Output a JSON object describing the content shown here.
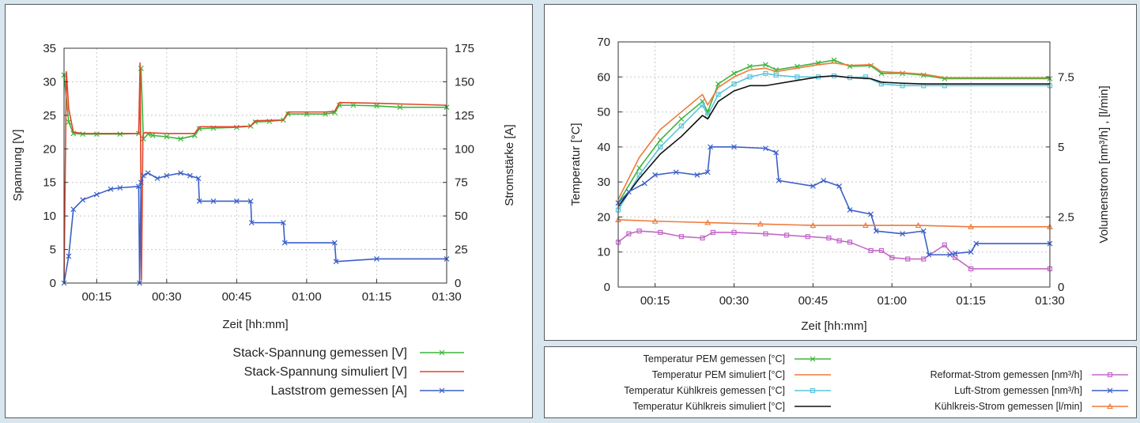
{
  "colors": {
    "green": "#3ab53a",
    "red": "#e2452a",
    "blue": "#3a5fc8",
    "cyan": "#5ac6dc",
    "black": "#111111",
    "orange": "#f07a3a",
    "magenta": "#c268c8"
  },
  "chart_data": [
    {
      "type": "line",
      "xlabel": "Zeit [hh:mm]",
      "ylabel": "Spannung [V]",
      "y2label": "Stromstärke [A]",
      "x_ticks": [
        "00:15",
        "00:30",
        "00:45",
        "01:00",
        "01:15",
        "01:30"
      ],
      "xlim_min": [
        8,
        90
      ],
      "ylim": [
        0,
        35
      ],
      "y_ticks": [
        0,
        5,
        10,
        15,
        20,
        25,
        30,
        35
      ],
      "y2lim": [
        0,
        175
      ],
      "y2_ticks": [
        0,
        25,
        50,
        75,
        100,
        125,
        150,
        175
      ],
      "grid": true,
      "legend_position": "bottom-right",
      "series": [
        {
          "name": "Stack-Spannung gemessen [V]",
          "color": "green",
          "marker": "x",
          "axis": "y",
          "x": [
            8,
            9,
            10,
            12,
            15,
            20,
            24,
            24.5,
            25,
            26,
            27,
            30,
            33,
            36,
            37,
            40,
            45,
            48,
            49,
            52,
            55,
            56,
            60,
            64,
            66,
            67,
            70,
            75,
            80,
            90
          ],
          "y": [
            31,
            24,
            22.3,
            22.2,
            22.2,
            22.2,
            22.3,
            32,
            21.5,
            22.2,
            22,
            21.8,
            21.5,
            22,
            23,
            23.1,
            23.2,
            23.4,
            24,
            24.1,
            24.3,
            25.2,
            25.2,
            25.2,
            25.4,
            26.5,
            26.5,
            26.4,
            26.2,
            26.2
          ]
        },
        {
          "name": "Stack-Spannung simuliert [V]",
          "color": "red",
          "marker": "",
          "axis": "y",
          "x": [
            8,
            8.5,
            9,
            10,
            12,
            15,
            20,
            24,
            24.3,
            24.6,
            24.9,
            25.2,
            26,
            30,
            36,
            37,
            40,
            45,
            48,
            49,
            55,
            56,
            64,
            66,
            67,
            75,
            90
          ],
          "y": [
            0,
            31.5,
            26,
            22.5,
            22.3,
            22.3,
            22.3,
            22.3,
            32.8,
            0.5,
            22,
            22.4,
            22.4,
            22.3,
            22.3,
            23.3,
            23.3,
            23.3,
            23.4,
            24.2,
            24.3,
            25.5,
            25.5,
            25.6,
            26.9,
            26.8,
            26.5
          ]
        },
        {
          "name": "Laststrom gemessen [A]",
          "color": "blue",
          "marker": "x",
          "axis": "y2",
          "x": [
            8,
            9,
            10,
            12,
            15,
            18,
            20,
            24,
            24.2,
            24.5,
            25,
            26,
            28,
            30,
            33,
            35,
            36.8,
            37,
            40,
            45,
            48,
            48.2,
            55,
            55.3,
            66,
            66.3,
            75,
            90
          ],
          "y": [
            0,
            20,
            55,
            62,
            66,
            70,
            71,
            72,
            0,
            75,
            80,
            82,
            78,
            80,
            82,
            80,
            78,
            61,
            61,
            61,
            61,
            45,
            45,
            30,
            30,
            16,
            18,
            18
          ]
        }
      ]
    },
    {
      "type": "line",
      "xlabel": "Zeit [hh:mm]",
      "ylabel": "Temperatur [°C]",
      "y2label": "Volumenstrom [nm³/h] , [l/min]",
      "x_ticks": [
        "00:15",
        "00:30",
        "00:45",
        "01:00",
        "01:15",
        "01:30"
      ],
      "xlim_min": [
        8,
        90
      ],
      "ylim": [
        0,
        70
      ],
      "y_ticks": [
        0,
        10,
        20,
        30,
        40,
        50,
        60,
        70
      ],
      "y2lim": [
        0,
        8.75
      ],
      "y2_ticks": [
        0,
        2.5,
        5,
        7.5
      ],
      "grid": true,
      "legend_position": "below",
      "series": [
        {
          "name": "Temperatur PEM gemessen [°C]",
          "color": "green",
          "marker": "x",
          "axis": "y",
          "x": [
            8,
            12,
            16,
            20,
            24,
            25,
            27,
            30,
            33,
            36,
            38,
            42,
            46,
            49,
            52,
            56,
            58,
            62,
            66,
            70,
            90
          ],
          "y": [
            24,
            34,
            42,
            48,
            53,
            50,
            58,
            61,
            63,
            63.5,
            62,
            63,
            64,
            64.8,
            63,
            63.2,
            61,
            61,
            60.5,
            59.5,
            59.5
          ]
        },
        {
          "name": "Temperatur PEM simuliert [°C]",
          "color": "orange",
          "marker": "",
          "axis": "y",
          "x": [
            8,
            12,
            16,
            20,
            24,
            25,
            27,
            30,
            33,
            36,
            38,
            42,
            46,
            49,
            52,
            56,
            58,
            62,
            66,
            70,
            90
          ],
          "y": [
            25,
            37,
            45,
            50,
            55,
            52,
            57,
            60,
            62,
            62.5,
            61.5,
            62.5,
            63.5,
            64,
            63.3,
            63.5,
            61.5,
            61.2,
            60.8,
            59.8,
            59.8
          ]
        },
        {
          "name": "Temperatur Kühlkreis gemessen [°C]",
          "color": "cyan",
          "marker": "square",
          "axis": "y",
          "x": [
            8,
            12,
            16,
            20,
            24,
            25,
            27,
            30,
            33,
            36,
            38,
            42,
            46,
            49,
            52,
            55,
            58,
            62,
            66,
            70,
            90
          ],
          "y": [
            22,
            32,
            40,
            46,
            52,
            49,
            55,
            58,
            60,
            61,
            60.5,
            60,
            60,
            60.3,
            59.8,
            60,
            58,
            57.5,
            57.5,
            57.5,
            57.5
          ]
        },
        {
          "name": "Temperatur Kühlkreis simuliert [°C]",
          "color": "black",
          "marker": "",
          "axis": "y",
          "x": [
            8,
            12,
            16,
            20,
            24,
            25,
            27,
            30,
            33,
            36,
            38,
            42,
            46,
            49,
            52,
            56,
            58,
            62,
            66,
            70,
            90
          ],
          "y": [
            23,
            31,
            38,
            43,
            49,
            48,
            53,
            56,
            57.5,
            57.5,
            58,
            59,
            60,
            60.3,
            59.8,
            59.5,
            58.5,
            58.2,
            58,
            58,
            58
          ]
        },
        {
          "name": "Reformat-Strom gemessen [nm³/h]",
          "color": "magenta",
          "marker": "square",
          "axis": "y2",
          "x": [
            8,
            10,
            12,
            16,
            20,
            24,
            26,
            30,
            36,
            40,
            44,
            48,
            50,
            52,
            56,
            58,
            60,
            63,
            66,
            70,
            72,
            75,
            90
          ],
          "y": [
            1.6,
            1.9,
            2.0,
            1.95,
            1.8,
            1.75,
            1.95,
            1.95,
            1.9,
            1.85,
            1.8,
            1.75,
            1.65,
            1.6,
            1.3,
            1.3,
            1.05,
            1.0,
            1.0,
            1.5,
            1.05,
            0.65,
            0.65
          ]
        },
        {
          "name": "Luft-Strom gemessen [nm³/h]",
          "color": "blue",
          "marker": "x",
          "axis": "y2",
          "x": [
            8,
            10,
            13,
            15,
            19,
            23,
            25,
            25.5,
            30,
            36,
            38,
            38.5,
            45,
            47,
            50,
            52,
            56,
            57,
            62,
            66,
            67,
            71,
            72,
            75,
            76,
            90
          ],
          "y": [
            3.0,
            3.4,
            3.7,
            4.0,
            4.1,
            4.0,
            4.1,
            5.0,
            5.0,
            4.95,
            4.8,
            3.8,
            3.6,
            3.8,
            3.6,
            2.75,
            2.6,
            2.0,
            1.9,
            2.0,
            1.15,
            1.15,
            1.2,
            1.25,
            1.55,
            1.55
          ]
        },
        {
          "name": "Kühlkreis-Strom gemessen [l/min]",
          "color": "orange",
          "marker": "triangle",
          "axis": "y2",
          "x": [
            8,
            15,
            25,
            35,
            45,
            55,
            65,
            75,
            90
          ],
          "y": [
            2.4,
            2.35,
            2.3,
            2.25,
            2.2,
            2.2,
            2.2,
            2.15,
            2.15
          ]
        }
      ]
    }
  ]
}
